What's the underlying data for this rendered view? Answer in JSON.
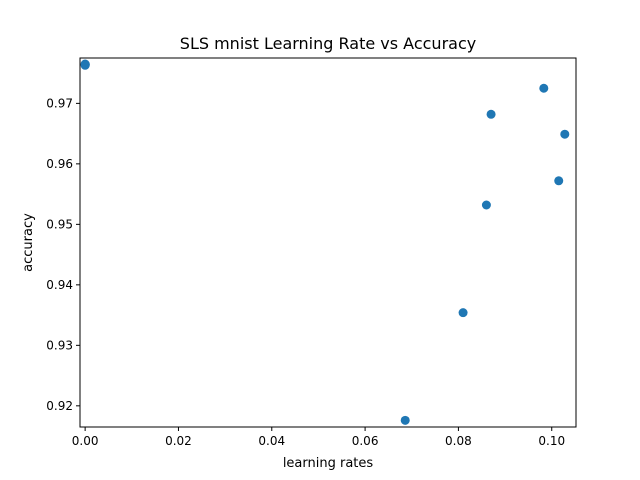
{
  "chart_data": {
    "type": "scatter",
    "title": "SLS mnist Learning Rate vs Accuracy",
    "xlabel": "learning rates",
    "ylabel": "accuracy",
    "xlim": [
      -0.0011,
      0.1052
    ],
    "ylim": [
      0.9165,
      0.9775
    ],
    "xticks": [
      0.0,
      0.02,
      0.04,
      0.06,
      0.08,
      0.1
    ],
    "xtick_labels": [
      "0.00",
      "0.02",
      "0.04",
      "0.06",
      "0.08",
      "0.10"
    ],
    "yticks": [
      0.92,
      0.93,
      0.94,
      0.95,
      0.96,
      0.97
    ],
    "ytick_labels": [
      "0.92",
      "0.93",
      "0.94",
      "0.95",
      "0.96",
      "0.97"
    ],
    "marker_color": "#1f77b4",
    "grid": false,
    "legend": false,
    "points": [
      {
        "x": 0.0,
        "y": 0.9765
      },
      {
        "x": 0.0,
        "y": 0.9763
      },
      {
        "x": 5e-05,
        "y": 0.9764
      },
      {
        "x": 0.0686,
        "y": 0.9176
      },
      {
        "x": 0.081,
        "y": 0.9354
      },
      {
        "x": 0.086,
        "y": 0.9532
      },
      {
        "x": 0.087,
        "y": 0.9682
      },
      {
        "x": 0.0983,
        "y": 0.9725
      },
      {
        "x": 0.1015,
        "y": 0.9572
      },
      {
        "x": 0.1028,
        "y": 0.9649
      }
    ]
  }
}
